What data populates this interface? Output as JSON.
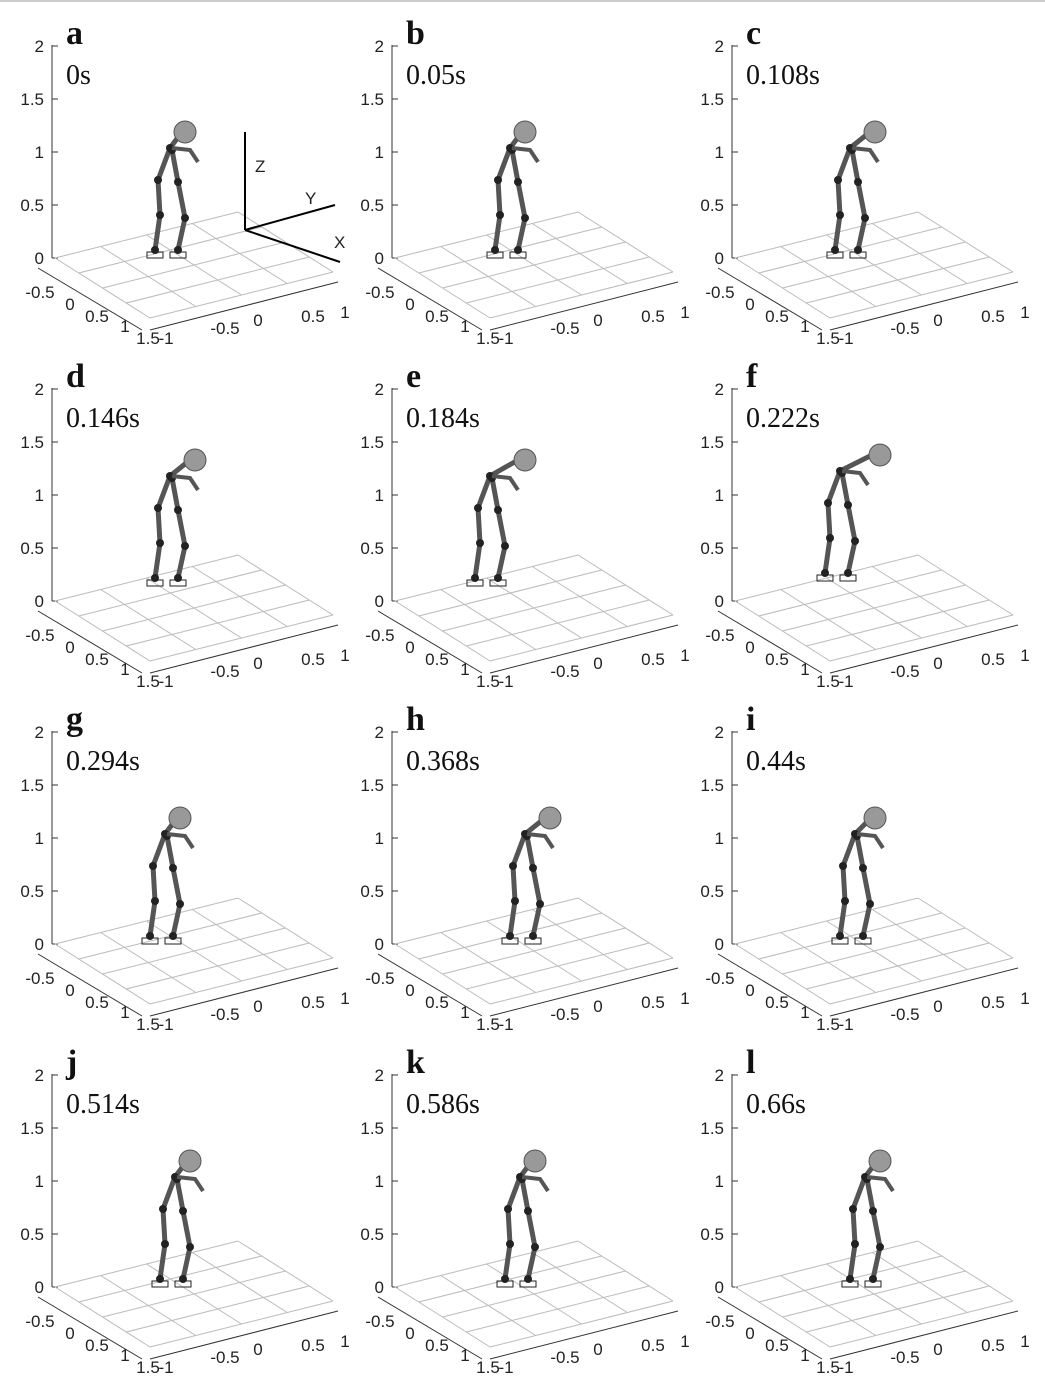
{
  "panels": [
    {
      "letter": "a",
      "time": "0s"
    },
    {
      "letter": "b",
      "time": "0.05s"
    },
    {
      "letter": "c",
      "time": "0.108s"
    },
    {
      "letter": "d",
      "time": "0.146s"
    },
    {
      "letter": "e",
      "time": "0.184s"
    },
    {
      "letter": "f",
      "time": "0.222s"
    },
    {
      "letter": "g",
      "time": "0.294s"
    },
    {
      "letter": "h",
      "time": "0.368s"
    },
    {
      "letter": "i",
      "time": "0.44s"
    },
    {
      "letter": "j",
      "time": "0.514s"
    },
    {
      "letter": "k",
      "time": "0.586s"
    },
    {
      "letter": "l",
      "time": "0.66s"
    }
  ],
  "axes": {
    "z_ticks": [
      "0",
      "0.5",
      "1",
      "1.5",
      "2"
    ],
    "x_ticks": [
      "-0.5",
      "0",
      "0.5",
      "1",
      "1.5"
    ],
    "y_ticks": [
      "-1",
      "-0.5",
      "0",
      "0.5",
      "1"
    ]
  },
  "frame_labels": {
    "z": "Z",
    "y": "Y",
    "x": "X"
  }
}
